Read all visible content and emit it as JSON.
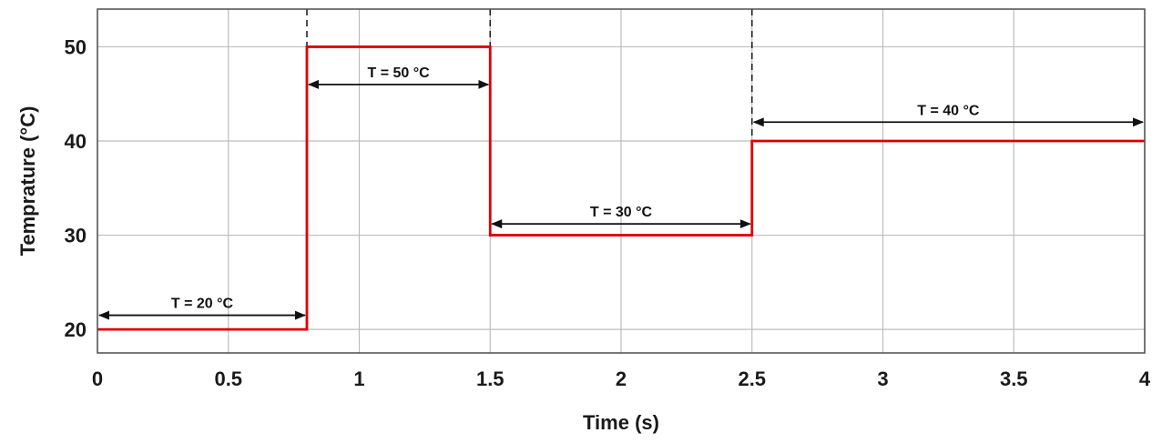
{
  "chart_data": {
    "type": "line",
    "title": "",
    "xlabel": "Time (s)",
    "ylabel": "Temprature (°C)",
    "xlim": [
      0,
      4
    ],
    "ylim": [
      17.5,
      54
    ],
    "grid": true,
    "x_ticks": [
      0,
      0.5,
      1,
      1.5,
      2,
      2.5,
      3,
      3.5,
      4
    ],
    "x_tick_labels": [
      "0",
      "0.5",
      "1",
      "1.5",
      "2",
      "2.5",
      "3",
      "3.5",
      "4"
    ],
    "y_ticks": [
      20,
      30,
      40,
      50
    ],
    "y_tick_labels": [
      "20",
      "30",
      "40",
      "50"
    ],
    "line_color": "#dd0000",
    "series": [
      {
        "x": [
          0,
          0.8,
          0.8,
          1.5,
          1.5,
          2.5,
          2.5,
          4
        ],
        "y": [
          20,
          20,
          50,
          50,
          30,
          30,
          40,
          40
        ]
      }
    ],
    "switch_times": [
      0.8,
      1.5,
      2.5
    ],
    "annotations": [
      {
        "text": "T = 20 °C",
        "x_start": 0,
        "x_end": 0.8,
        "y": 21.5
      },
      {
        "text": "T = 50 °C",
        "x_start": 0.8,
        "x_end": 1.5,
        "y": 46
      },
      {
        "text": "T = 30 °C",
        "x_start": 1.5,
        "x_end": 2.5,
        "y": 31.2
      },
      {
        "text": "T = 40 °C",
        "x_start": 2.5,
        "x_end": 4,
        "y": 42
      }
    ]
  }
}
